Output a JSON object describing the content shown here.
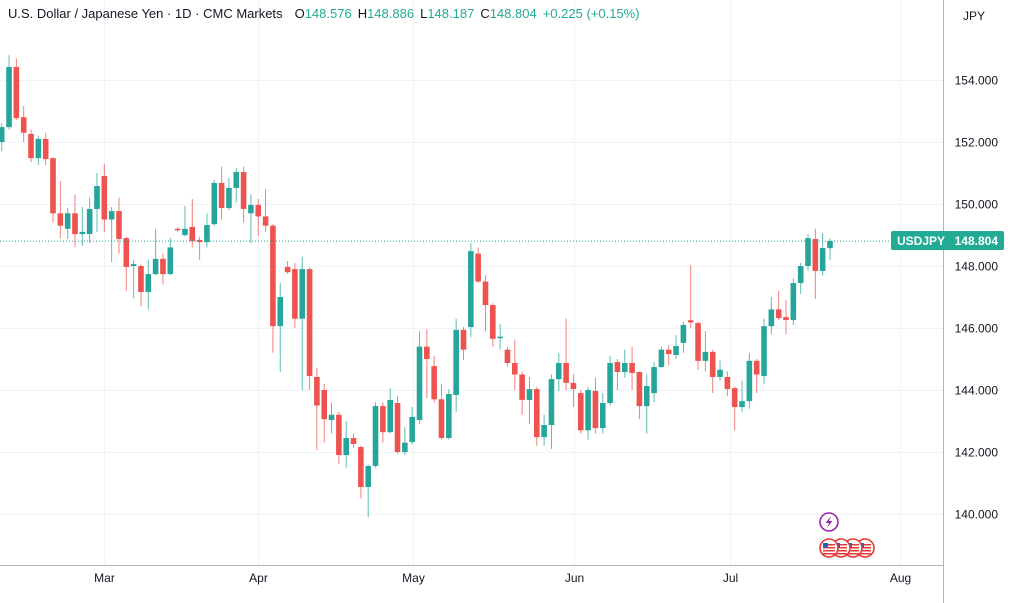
{
  "header": {
    "title": "U.S. Dollar / Japanese Yen · 1D · CMC Markets",
    "open_label": "O",
    "open": "148.576",
    "high_label": "H",
    "high": "148.886",
    "low_label": "L",
    "low": "148.187",
    "close_label": "C",
    "close": "148.804",
    "change": "+0.225 (+0.15%)"
  },
  "currency_button": "JPY",
  "price_tag": {
    "symbol": "USDJPY",
    "price": "148.804",
    "value": 148.804
  },
  "colors": {
    "up": "#26a69a",
    "down": "#ef5350",
    "accent": "#22ab94",
    "event": "#9c27b0"
  },
  "events": {
    "icons": [
      "lightning-icon",
      "us-flag-icon",
      "us-flag-icon",
      "us-flag-icon",
      "us-flag-icon"
    ]
  },
  "chart_data": {
    "type": "candlestick",
    "title": "U.S. Dollar / Japanese Yen · 1D · CMC Markets",
    "ylim": [
      138.5,
      156.6
    ],
    "grid": true,
    "y_ticks": [
      "140.000",
      "142.000",
      "144.000",
      "146.000",
      "148.000",
      "150.000",
      "152.000",
      "154.000"
    ],
    "y_tick_values": [
      140,
      142,
      144,
      146,
      148,
      150,
      152,
      154
    ],
    "x_ticks": [
      {
        "label": "Mar",
        "index": 14
      },
      {
        "label": "Apr",
        "index": 35
      },
      {
        "label": "May",
        "index": 56.1
      },
      {
        "label": "Jun",
        "index": 78.1
      },
      {
        "label": "Jul",
        "index": 99.4
      },
      {
        "label": "Aug",
        "index": 122.6
      }
    ],
    "ohlc_fields": [
      "open",
      "high",
      "low",
      "close"
    ],
    "candles": [
      [
        152.0,
        152.6,
        151.7,
        152.48
      ],
      [
        152.48,
        154.8,
        152.4,
        154.42
      ],
      [
        154.42,
        154.7,
        152.7,
        152.77
      ],
      [
        152.8,
        153.16,
        152.0,
        152.3
      ],
      [
        152.26,
        152.4,
        151.35,
        151.48
      ],
      [
        151.48,
        152.2,
        151.26,
        152.1
      ],
      [
        152.1,
        152.3,
        151.26,
        151.45
      ],
      [
        151.48,
        151.5,
        149.4,
        149.7
      ],
      [
        149.7,
        150.74,
        148.9,
        149.3
      ],
      [
        149.2,
        149.87,
        148.87,
        149.7
      ],
      [
        149.7,
        150.3,
        148.6,
        149.03
      ],
      [
        149.03,
        149.9,
        148.65,
        149.1
      ],
      [
        149.03,
        150.2,
        148.74,
        149.84
      ],
      [
        149.84,
        151.0,
        149.1,
        150.58
      ],
      [
        150.9,
        151.3,
        149.1,
        149.5
      ],
      [
        149.5,
        149.9,
        148.13,
        149.77
      ],
      [
        149.77,
        150.2,
        148.4,
        148.87
      ],
      [
        148.9,
        148.95,
        147.2,
        147.97
      ],
      [
        148.0,
        148.2,
        146.97,
        148.06
      ],
      [
        148.0,
        148.05,
        146.7,
        147.16
      ],
      [
        147.16,
        148.2,
        146.6,
        147.74
      ],
      [
        147.74,
        149.2,
        147.7,
        148.23
      ],
      [
        148.23,
        148.4,
        147.4,
        147.74
      ],
      [
        147.74,
        148.9,
        147.7,
        148.6
      ],
      [
        149.2,
        149.25,
        149.1,
        149.16
      ],
      [
        149.0,
        149.94,
        148.95,
        149.2
      ],
      [
        149.26,
        150.16,
        148.6,
        148.8
      ],
      [
        148.84,
        148.94,
        148.2,
        148.77
      ],
      [
        148.77,
        149.7,
        148.6,
        149.32
      ],
      [
        149.35,
        150.77,
        149.3,
        150.68
      ],
      [
        150.68,
        151.2,
        149.5,
        149.87
      ],
      [
        149.87,
        150.84,
        149.8,
        150.52
      ],
      [
        150.52,
        151.16,
        150.06,
        151.03
      ],
      [
        151.03,
        151.2,
        149.4,
        149.84
      ],
      [
        149.7,
        150.3,
        148.74,
        149.97
      ],
      [
        149.97,
        150.16,
        148.97,
        149.6
      ],
      [
        149.6,
        150.48,
        149.1,
        149.3
      ],
      [
        149.3,
        149.35,
        145.2,
        146.06
      ],
      [
        146.06,
        147.45,
        144.58,
        147.0
      ],
      [
        147.97,
        148.16,
        147.75,
        147.8
      ],
      [
        147.9,
        148.1,
        146.0,
        146.3
      ],
      [
        146.3,
        148.3,
        144.0,
        147.9
      ],
      [
        147.9,
        147.95,
        144.0,
        144.45
      ],
      [
        144.42,
        144.7,
        142.06,
        143.5
      ],
      [
        144.0,
        144.2,
        142.3,
        143.06
      ],
      [
        143.03,
        143.6,
        142.6,
        143.2
      ],
      [
        143.2,
        143.3,
        141.6,
        141.9
      ],
      [
        141.9,
        143.0,
        141.5,
        142.45
      ],
      [
        142.45,
        142.6,
        142.15,
        142.26
      ],
      [
        142.16,
        142.2,
        140.5,
        140.87
      ],
      [
        140.87,
        141.6,
        139.9,
        141.55
      ],
      [
        141.55,
        143.6,
        141.5,
        143.48
      ],
      [
        143.48,
        143.6,
        142.3,
        142.64
      ],
      [
        142.64,
        144.06,
        142.6,
        143.68
      ],
      [
        143.58,
        143.8,
        141.95,
        142.0
      ],
      [
        142.0,
        142.8,
        141.9,
        142.3
      ],
      [
        142.32,
        143.45,
        142.25,
        143.13
      ],
      [
        143.03,
        145.9,
        142.9,
        145.4
      ],
      [
        145.4,
        145.97,
        143.74,
        145.0
      ],
      [
        144.77,
        145.1,
        143.6,
        143.7
      ],
      [
        143.7,
        144.2,
        142.4,
        142.45
      ],
      [
        142.45,
        144.03,
        142.4,
        143.87
      ],
      [
        143.84,
        146.3,
        143.3,
        145.94
      ],
      [
        145.94,
        146.03,
        144.97,
        145.3
      ],
      [
        146.03,
        148.74,
        145.7,
        148.48
      ],
      [
        148.4,
        148.6,
        147.45,
        147.5
      ],
      [
        147.5,
        147.7,
        145.9,
        146.74
      ],
      [
        146.74,
        146.8,
        145.4,
        145.65
      ],
      [
        145.68,
        146.13,
        145.3,
        145.72
      ],
      [
        145.3,
        145.4,
        144.75,
        144.87
      ],
      [
        144.87,
        145.6,
        144.0,
        144.5
      ],
      [
        144.5,
        144.6,
        143.2,
        143.68
      ],
      [
        143.68,
        144.42,
        142.9,
        144.03
      ],
      [
        144.03,
        144.1,
        142.2,
        142.48
      ],
      [
        142.48,
        143.2,
        142.2,
        142.87
      ],
      [
        142.87,
        144.5,
        142.1,
        144.35
      ],
      [
        144.35,
        145.2,
        143.97,
        144.87
      ],
      [
        144.87,
        146.3,
        144.0,
        144.23
      ],
      [
        144.23,
        144.5,
        143.45,
        144.03
      ],
      [
        143.9,
        144.0,
        142.6,
        142.7
      ],
      [
        142.7,
        144.1,
        142.4,
        144.0
      ],
      [
        143.97,
        144.4,
        142.6,
        142.77
      ],
      [
        142.77,
        143.9,
        142.6,
        143.58
      ],
      [
        143.58,
        145.1,
        143.5,
        144.87
      ],
      [
        144.9,
        145.0,
        144.0,
        144.58
      ],
      [
        144.58,
        145.3,
        144.4,
        144.87
      ],
      [
        144.87,
        145.4,
        144.0,
        144.55
      ],
      [
        144.58,
        144.6,
        143.06,
        143.48
      ],
      [
        143.48,
        144.5,
        142.6,
        144.13
      ],
      [
        143.9,
        144.9,
        143.6,
        144.74
      ],
      [
        144.74,
        145.4,
        144.7,
        145.3
      ],
      [
        145.3,
        145.45,
        144.8,
        145.16
      ],
      [
        145.13,
        145.77,
        145.0,
        145.42
      ],
      [
        145.52,
        146.2,
        145.2,
        146.1
      ],
      [
        146.25,
        148.03,
        146.0,
        146.18
      ],
      [
        146.16,
        146.2,
        144.65,
        144.94
      ],
      [
        144.94,
        145.9,
        144.6,
        145.23
      ],
      [
        145.23,
        145.3,
        143.9,
        144.42
      ],
      [
        144.42,
        144.95,
        144.3,
        144.65
      ],
      [
        144.42,
        144.6,
        143.8,
        144.03
      ],
      [
        144.06,
        144.1,
        142.7,
        143.45
      ],
      [
        143.45,
        144.3,
        143.3,
        143.64
      ],
      [
        143.64,
        145.2,
        143.4,
        144.94
      ],
      [
        144.94,
        145.0,
        143.9,
        144.5
      ],
      [
        144.45,
        146.3,
        144.2,
        146.06
      ],
      [
        146.06,
        147.0,
        145.8,
        146.6
      ],
      [
        146.6,
        147.2,
        146.25,
        146.32
      ],
      [
        146.35,
        146.9,
        145.8,
        146.26
      ],
      [
        146.26,
        147.6,
        146.1,
        147.45
      ],
      [
        147.45,
        148.1,
        147.1,
        148.0
      ],
      [
        148.0,
        149.03,
        147.85,
        148.9
      ],
      [
        148.87,
        149.2,
        146.94,
        147.84
      ],
      [
        147.84,
        149.06,
        147.7,
        148.58
      ],
      [
        148.576,
        148.886,
        148.187,
        148.804
      ]
    ]
  }
}
